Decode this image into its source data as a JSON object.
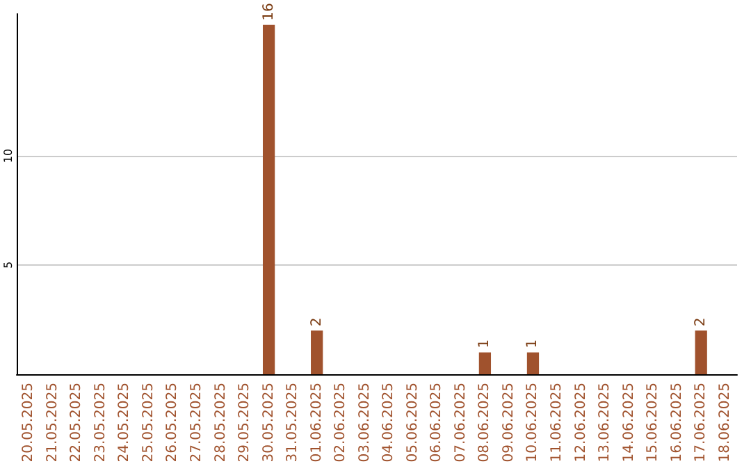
{
  "chart_data": {
    "type": "bar",
    "categories": [
      "20.05.2025",
      "21.05.2025",
      "22.05.2025",
      "23.05.2025",
      "24.05.2025",
      "25.05.2025",
      "26.05.2025",
      "27.05.2025",
      "28.05.2025",
      "29.05.2025",
      "30.05.2025",
      "31.05.2025",
      "01.06.2025",
      "02.06.2025",
      "03.06.2025",
      "04.06.2025",
      "05.06.2025",
      "06.06.2025",
      "07.06.2025",
      "08.06.2025",
      "09.06.2025",
      "10.06.2025",
      "11.06.2025",
      "12.06.2025",
      "13.06.2025",
      "14.06.2025",
      "15.06.2025",
      "16.06.2025",
      "17.06.2025",
      "18.06.2025"
    ],
    "values": [
      0,
      0,
      0,
      0,
      0,
      0,
      0,
      0,
      0,
      0,
      16,
      0,
      2,
      0,
      0,
      0,
      0,
      0,
      0,
      1,
      0,
      1,
      0,
      0,
      0,
      0,
      0,
      0,
      2,
      0
    ],
    "value_labels": [
      null,
      null,
      null,
      null,
      null,
      null,
      null,
      null,
      null,
      null,
      "16",
      null,
      "2",
      null,
      null,
      null,
      null,
      null,
      null,
      "1",
      null,
      "1",
      null,
      null,
      null,
      null,
      null,
      null,
      "2",
      null
    ],
    "color": "#a0522d",
    "ylim": [
      0,
      16.5
    ],
    "yticks": [
      5,
      10
    ],
    "grid": "y"
  }
}
